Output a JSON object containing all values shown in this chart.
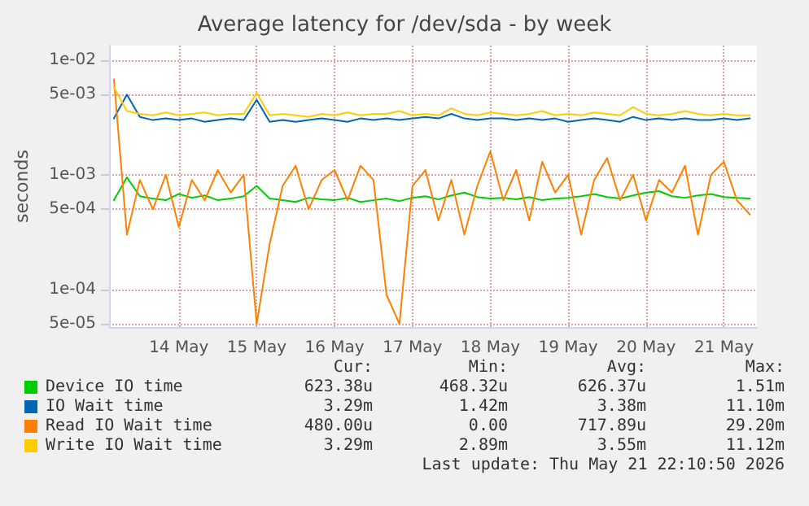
{
  "chart_data": {
    "type": "line",
    "title": "Average latency for /dev/sda - by week",
    "ylabel": "seconds",
    "x": [
      "2026-05-13T16:00",
      "2026-05-13T20:00",
      "2026-05-14T00:00",
      "2026-05-14T04:00",
      "2026-05-14T08:00",
      "2026-05-14T12:00",
      "2026-05-14T16:00",
      "2026-05-14T20:00",
      "2026-05-15T00:00",
      "2026-05-15T04:00",
      "2026-05-15T08:00",
      "2026-05-15T12:00",
      "2026-05-15T16:00",
      "2026-05-15T20:00",
      "2026-05-16T00:00",
      "2026-05-16T04:00",
      "2026-05-16T08:00",
      "2026-05-16T12:00",
      "2026-05-16T16:00",
      "2026-05-16T20:00",
      "2026-05-17T00:00",
      "2026-05-17T04:00",
      "2026-05-17T08:00",
      "2026-05-17T12:00",
      "2026-05-17T16:00",
      "2026-05-17T20:00",
      "2026-05-18T00:00",
      "2026-05-18T04:00",
      "2026-05-18T08:00",
      "2026-05-18T12:00",
      "2026-05-18T16:00",
      "2026-05-18T20:00",
      "2026-05-19T00:00",
      "2026-05-19T04:00",
      "2026-05-19T08:00",
      "2026-05-19T12:00",
      "2026-05-19T16:00",
      "2026-05-19T20:00",
      "2026-05-20T00:00",
      "2026-05-20T04:00",
      "2026-05-20T08:00",
      "2026-05-20T12:00",
      "2026-05-20T16:00",
      "2026-05-20T20:00",
      "2026-05-21T00:00",
      "2026-05-21T04:00",
      "2026-05-21T08:00",
      "2026-05-21T12:00",
      "2026-05-21T16:00",
      "2026-05-21T20:00"
    ],
    "series": [
      {
        "name": "Device IO time",
        "color": "#00cc00",
        "values": [
          0.0006,
          0.00095,
          0.00065,
          0.00062,
          0.0006,
          0.00068,
          0.00063,
          0.00066,
          0.0006,
          0.00062,
          0.00065,
          0.0008,
          0.00062,
          0.0006,
          0.00058,
          0.00063,
          0.00061,
          0.0006,
          0.00063,
          0.00058,
          0.0006,
          0.00062,
          0.00059,
          0.00063,
          0.00065,
          0.00061,
          0.00066,
          0.0007,
          0.00064,
          0.00062,
          0.00063,
          0.00061,
          0.00064,
          0.0006,
          0.00062,
          0.00063,
          0.00065,
          0.00068,
          0.00064,
          0.00062,
          0.00066,
          0.0007,
          0.00072,
          0.00065,
          0.00063,
          0.00066,
          0.00068,
          0.00064,
          0.00063,
          0.00062
        ]
      },
      {
        "name": "IO Wait time",
        "color": "#0066b3",
        "values": [
          0.0031,
          0.005,
          0.0032,
          0.003,
          0.0031,
          0.003,
          0.0031,
          0.0029,
          0.003,
          0.0031,
          0.003,
          0.0045,
          0.0029,
          0.003,
          0.0029,
          0.003,
          0.0031,
          0.003,
          0.0029,
          0.0031,
          0.003,
          0.0031,
          0.003,
          0.0031,
          0.0032,
          0.0031,
          0.0034,
          0.0031,
          0.003,
          0.0031,
          0.0031,
          0.003,
          0.0031,
          0.003,
          0.0031,
          0.0029,
          0.003,
          0.0031,
          0.003,
          0.0029,
          0.0032,
          0.003,
          0.0031,
          0.003,
          0.0031,
          0.003,
          0.003,
          0.0031,
          0.003,
          0.0031
        ]
      },
      {
        "name": "Read IO Wait time",
        "color": "#ff8000",
        "values": [
          0.0068,
          0.0003,
          0.0009,
          0.0005,
          0.001,
          0.00035,
          0.0009,
          0.0006,
          0.0011,
          0.0007,
          0.001,
          5e-05,
          0.00025,
          0.0008,
          0.0012,
          0.0005,
          0.0009,
          0.0011,
          0.0006,
          0.0012,
          0.0009,
          9e-05,
          5e-05,
          0.0008,
          0.0011,
          0.0004,
          0.0009,
          0.0003,
          0.0008,
          0.0016,
          0.0006,
          0.0011,
          0.0004,
          0.0013,
          0.0007,
          0.001,
          0.0003,
          0.0009,
          0.0014,
          0.0006,
          0.001,
          0.0004,
          0.0009,
          0.0007,
          0.0012,
          0.0003,
          0.001,
          0.0013,
          0.0006,
          0.00045
        ]
      },
      {
        "name": "Write IO Wait time",
        "color": "#ffcc00",
        "values": [
          0.0058,
          0.0036,
          0.0034,
          0.0033,
          0.0035,
          0.0033,
          0.0034,
          0.0035,
          0.0033,
          0.0034,
          0.0034,
          0.0052,
          0.0033,
          0.0034,
          0.0033,
          0.0032,
          0.0034,
          0.0033,
          0.0035,
          0.0033,
          0.0034,
          0.0034,
          0.0036,
          0.0033,
          0.0034,
          0.0033,
          0.0038,
          0.0034,
          0.0033,
          0.0035,
          0.0034,
          0.0033,
          0.0034,
          0.0036,
          0.0033,
          0.0034,
          0.0033,
          0.0035,
          0.0034,
          0.0033,
          0.0039,
          0.0034,
          0.0033,
          0.0034,
          0.0036,
          0.0034,
          0.0033,
          0.0034,
          0.0033,
          0.0033
        ]
      }
    ],
    "log": "y",
    "xlim": [
      "2026-05-13T14:30",
      "2026-05-21T22:10"
    ],
    "xticks": [
      {
        "value": "2026-05-14T12:00",
        "label": "14 May"
      },
      {
        "value": "2026-05-15T12:00",
        "label": "15 May"
      },
      {
        "value": "2026-05-16T12:00",
        "label": "16 May"
      },
      {
        "value": "2026-05-17T12:00",
        "label": "17 May"
      },
      {
        "value": "2026-05-18T12:00",
        "label": "18 May"
      },
      {
        "value": "2026-05-19T12:00",
        "label": "19 May"
      },
      {
        "value": "2026-05-20T12:00",
        "label": "20 May"
      },
      {
        "value": "2026-05-21T12:00",
        "label": "21 May"
      }
    ],
    "ylim": [
      4.7e-05,
      0.0134
    ],
    "yticks": [
      {
        "value": 5e-05,
        "label": "5e-05"
      },
      {
        "value": 0.0001,
        "label": "1e-04"
      },
      {
        "value": 0.0005,
        "label": "5e-04"
      },
      {
        "value": 0.001,
        "label": "1e-03"
      },
      {
        "value": 0.005,
        "label": "5e-03"
      },
      {
        "value": 0.01,
        "label": "1e-02"
      }
    ],
    "grid": true,
    "legend": "bottom left",
    "marker": "none",
    "line_style": "solid",
    "annotations": [
      "Cur:",
      "Min:",
      "Avg:",
      "Max:",
      "623.38u",
      "468.32u",
      "626.37u",
      "1.51m",
      "3.29m",
      "1.42m",
      "3.38m",
      "11.10m",
      "480.00u",
      "0.00",
      "717.89u",
      "29.20m",
      "3.29m",
      "2.89m",
      "3.55m",
      "11.12m",
      "Last update: Thu May 21 22:10:50 2026"
    ]
  }
}
